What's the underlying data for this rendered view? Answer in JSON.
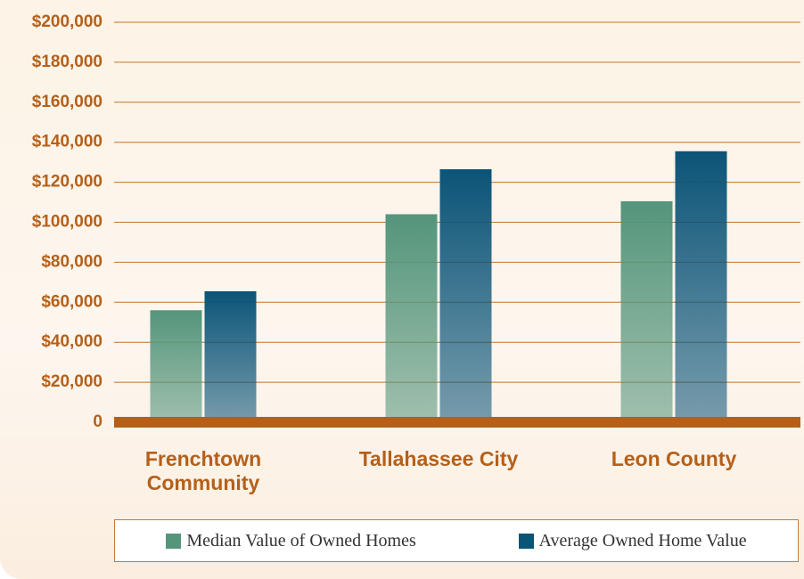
{
  "chart_data": {
    "type": "bar",
    "categories": [
      "Frenchtown Community",
      "Tallahassee City",
      "Leon County"
    ],
    "series": [
      {
        "name": "Median Value of Owned Homes",
        "color": "#54957b",
        "values": [
          56000,
          104000,
          110500
        ]
      },
      {
        "name": "Average Owned Home Value",
        "color": "#0b5478",
        "values": [
          65500,
          126500,
          135500
        ]
      }
    ],
    "ylim": [
      0,
      200000
    ],
    "yticks": [
      0,
      {
        "value": 20000,
        "label": "$20,000"
      },
      {
        "value": 40000,
        "label": "$40,000"
      },
      {
        "value": 60000,
        "label": "$60,000"
      },
      {
        "value": 80000,
        "label": "$80,000"
      },
      {
        "value": 100000,
        "label": "$100,000"
      },
      {
        "value": 120000,
        "label": "$120,000"
      },
      {
        "value": 140000,
        "label": "$140,000"
      },
      {
        "value": 160000,
        "label": "$160,000"
      },
      {
        "value": 180000,
        "label": "$180,000"
      },
      {
        "value": 200000,
        "label": "$200,000"
      }
    ],
    "grid": true
  }
}
